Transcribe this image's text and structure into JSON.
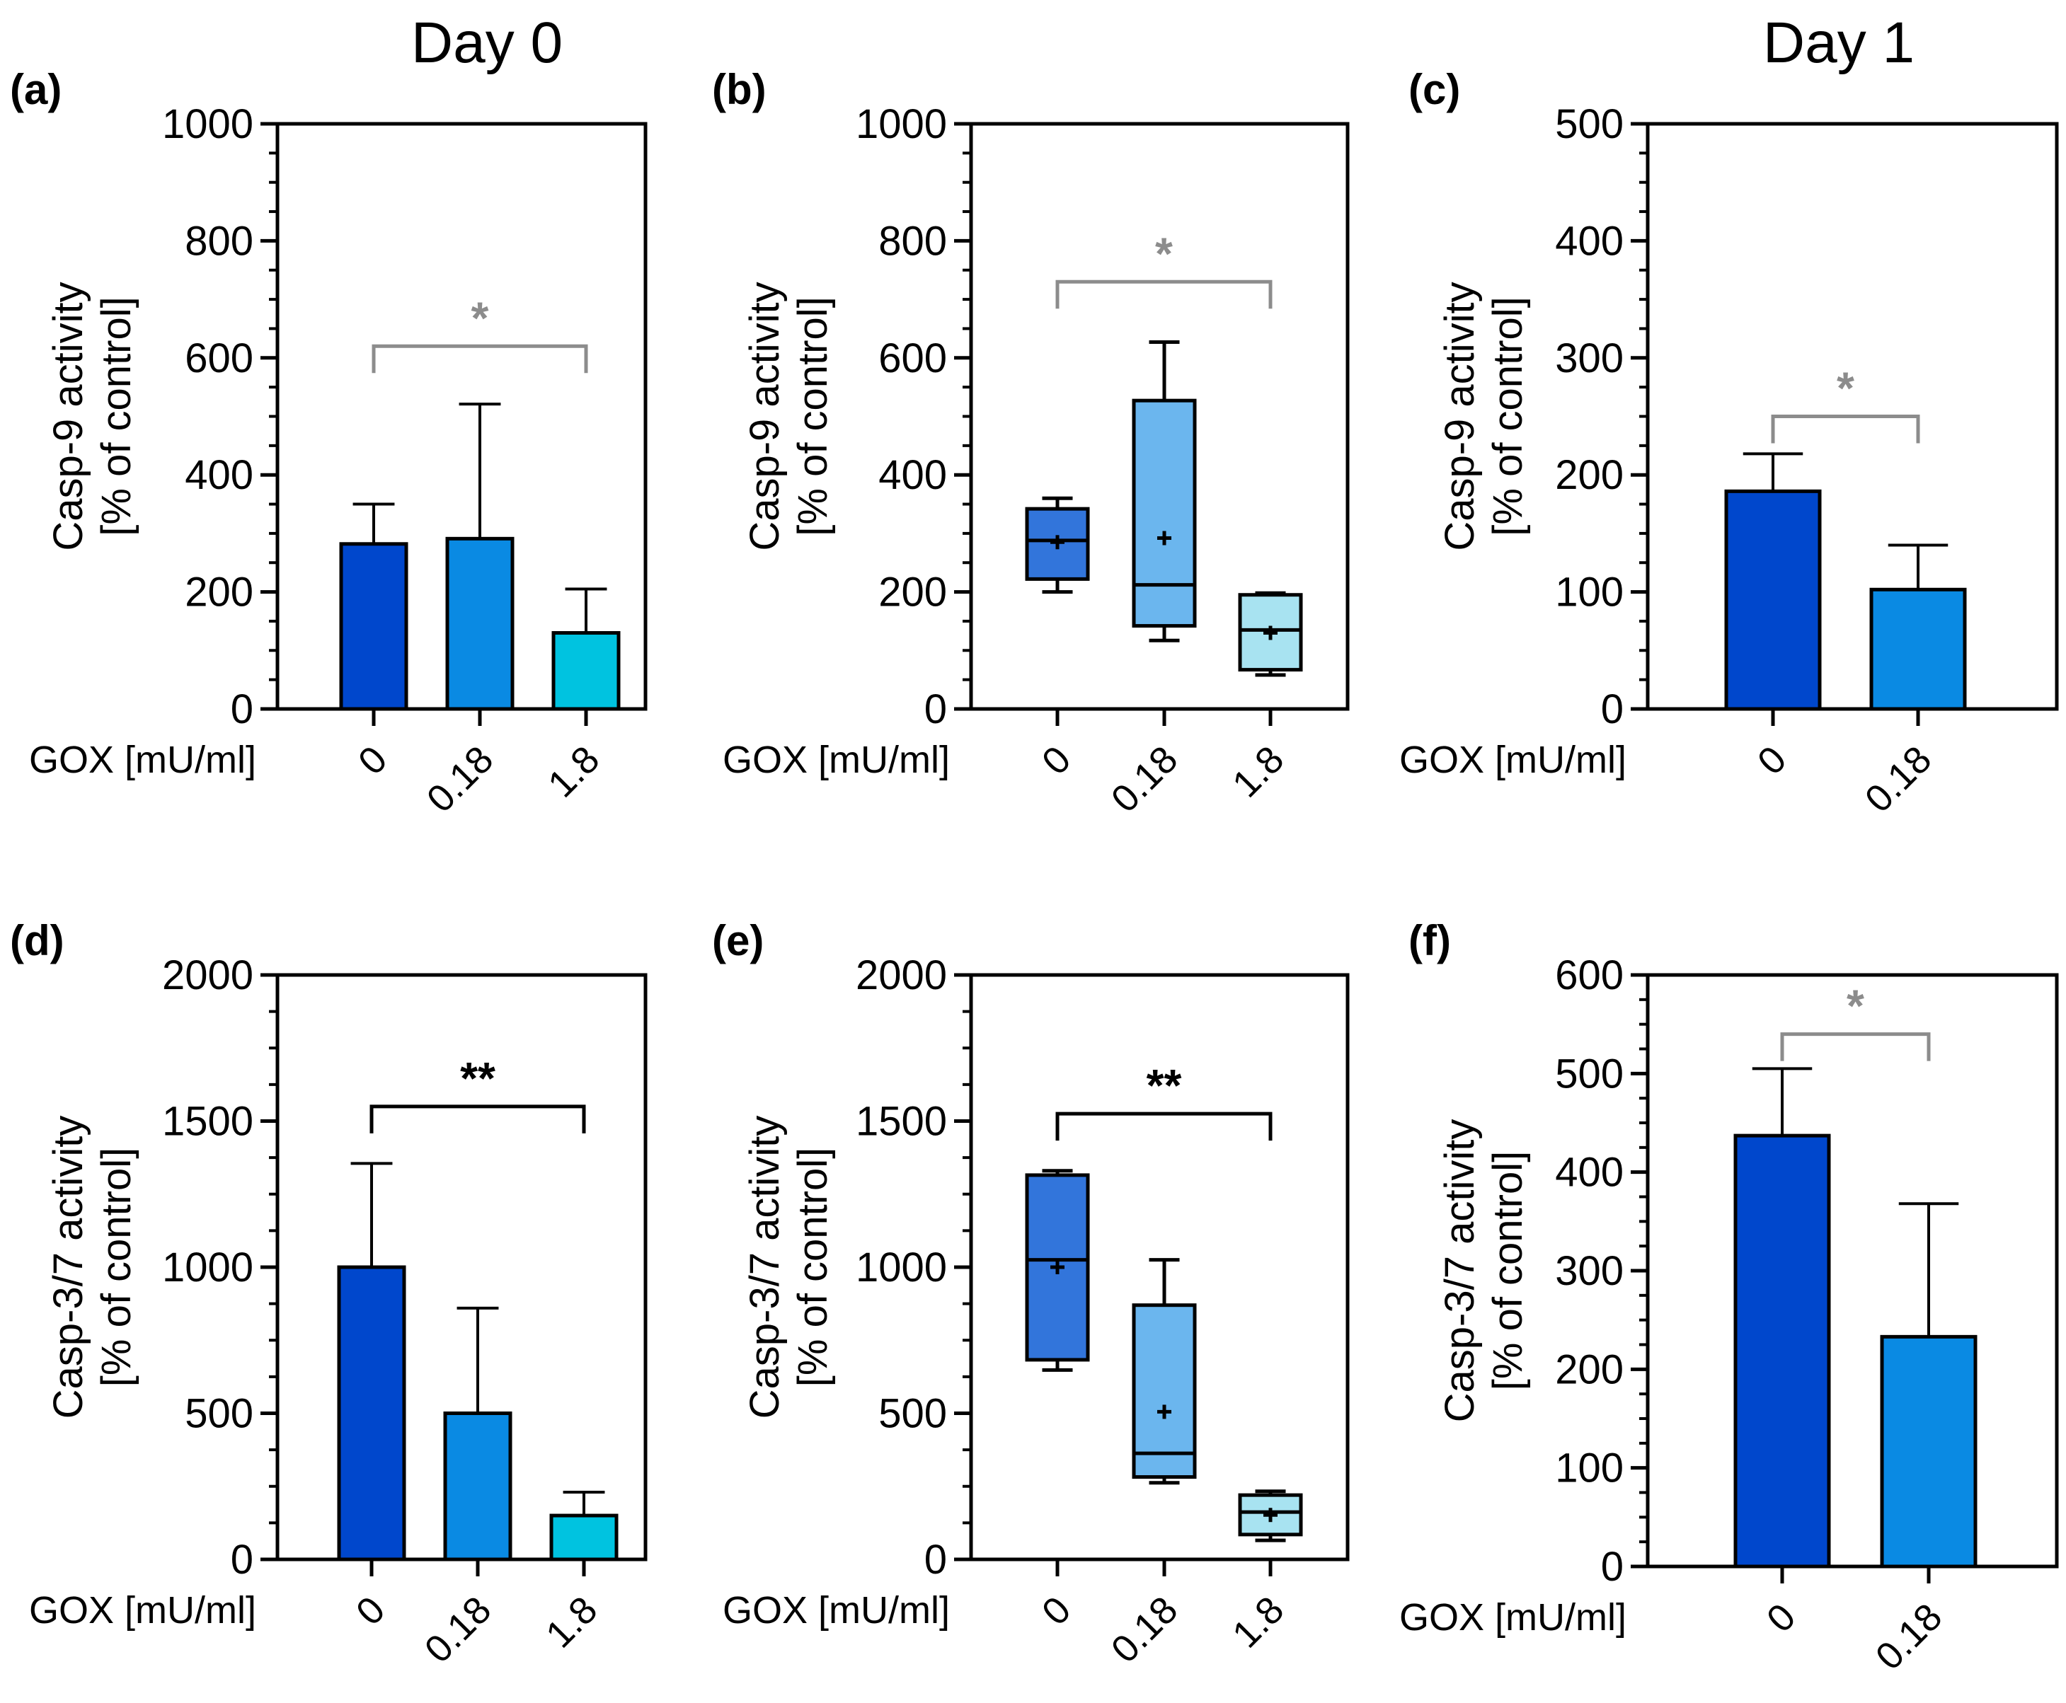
{
  "headers": {
    "day0": "Day 0",
    "day1": "Day 1"
  },
  "colors": {
    "c0": "#0047CC",
    "c018": "#0A8AE3",
    "c18": "#00C3E0",
    "box0": "#3275DB",
    "box018": "#6BB6EE",
    "box18": "#A8E3F1",
    "sig_gray": "#8C8C8C",
    "sig_black": "#000000"
  },
  "chart_data": [
    {
      "id": "a",
      "panel_label": "(a)",
      "type": "bar",
      "ylabel_line1": "Casp-9 activity",
      "ylabel_line2": "[% of control]",
      "xlabel": "GOX [mU/ml]",
      "categories": [
        "0",
        "0.18",
        "1.8"
      ],
      "values": [
        282,
        291,
        130
      ],
      "errors": [
        350,
        521,
        205
      ],
      "ylim": [
        0,
        1000
      ],
      "yticks": [
        "0",
        "200",
        "400",
        "600",
        "800",
        "1000"
      ],
      "sig": {
        "text": "*",
        "from": 0,
        "to": 2,
        "y": 620,
        "color": "gray"
      }
    },
    {
      "id": "b",
      "panel_label": "(b)",
      "type": "box",
      "ylabel_line1": "Casp-9 activity",
      "ylabel_line2": "[% of control]",
      "xlabel": "GOX [mU/ml]",
      "categories": [
        "0",
        "0.18",
        "1.8"
      ],
      "boxes": [
        {
          "min": 200,
          "q1": 222,
          "median": 288,
          "q3": 342,
          "max": 360,
          "mean": 285
        },
        {
          "min": 117,
          "q1": 142,
          "median": 212,
          "q3": 527,
          "max": 627,
          "mean": 292
        },
        {
          "min": 58,
          "q1": 67,
          "median": 135,
          "q3": 195,
          "max": 198,
          "mean": 130
        }
      ],
      "ylim": [
        0,
        1000
      ],
      "yticks": [
        "0",
        "200",
        "400",
        "600",
        "800",
        "1000"
      ],
      "sig": {
        "text": "*",
        "from": 0,
        "to": 2,
        "y": 730,
        "color": "gray"
      }
    },
    {
      "id": "c",
      "panel_label": "(c)",
      "type": "bar",
      "ylabel_line1": "Casp-9 activity",
      "ylabel_line2": "[% of control]",
      "xlabel": "GOX [mU/ml]",
      "categories": [
        "0",
        "0.18"
      ],
      "values": [
        186,
        102
      ],
      "errors": [
        218,
        140
      ],
      "ylim": [
        0,
        500
      ],
      "yticks": [
        "0",
        "100",
        "200",
        "300",
        "400",
        "500"
      ],
      "sig": {
        "text": "*",
        "from": 0,
        "to": 1,
        "y": 250,
        "color": "gray"
      }
    },
    {
      "id": "d",
      "panel_label": "(d)",
      "type": "bar",
      "ylabel_line1": "Casp-3/7 activity",
      "ylabel_line2": "[% of control]",
      "xlabel": "GOX [mU/ml]",
      "categories": [
        "0",
        "0.18",
        "1.8"
      ],
      "values": [
        1000,
        500,
        150
      ],
      "errors": [
        1355,
        860,
        230
      ],
      "ylim": [
        0,
        2000
      ],
      "yticks": [
        "0",
        "500",
        "1000",
        "1500",
        "2000"
      ],
      "sig": {
        "text": "**",
        "from": 0,
        "to": 2,
        "y": 1550,
        "color": "black"
      }
    },
    {
      "id": "e",
      "panel_label": "(e)",
      "type": "box",
      "ylabel_line1": "Casp-3/7 activity",
      "ylabel_line2": "[% of control]",
      "xlabel": "GOX [mU/ml]",
      "categories": [
        "0",
        "0.18",
        "1.8"
      ],
      "boxes": [
        {
          "min": 648,
          "q1": 683,
          "median": 1025,
          "q3": 1315,
          "max": 1330,
          "mean": 1000
        },
        {
          "min": 262,
          "q1": 282,
          "median": 363,
          "q3": 870,
          "max": 1025,
          "mean": 505
        },
        {
          "min": 65,
          "q1": 85,
          "median": 162,
          "q3": 220,
          "max": 233,
          "mean": 152
        }
      ],
      "ylim": [
        0,
        2000
      ],
      "yticks": [
        "0",
        "500",
        "1000",
        "1500",
        "2000"
      ],
      "sig": {
        "text": "**",
        "from": 0,
        "to": 2,
        "y": 1525,
        "color": "black"
      }
    },
    {
      "id": "f",
      "panel_label": "(f)",
      "type": "bar",
      "ylabel_line1": "Casp-3/7 activity",
      "ylabel_line2": "[% of control]",
      "xlabel": "GOX [mU/ml]",
      "categories": [
        "0",
        "0.18"
      ],
      "values": [
        437,
        233
      ],
      "errors": [
        505,
        368
      ],
      "ylim": [
        0,
        600
      ],
      "yticks": [
        "0",
        "100",
        "200",
        "300",
        "400",
        "500",
        "600"
      ],
      "sig": {
        "text": "*",
        "from": 0,
        "to": 1,
        "y": 540,
        "color": "gray"
      }
    }
  ]
}
